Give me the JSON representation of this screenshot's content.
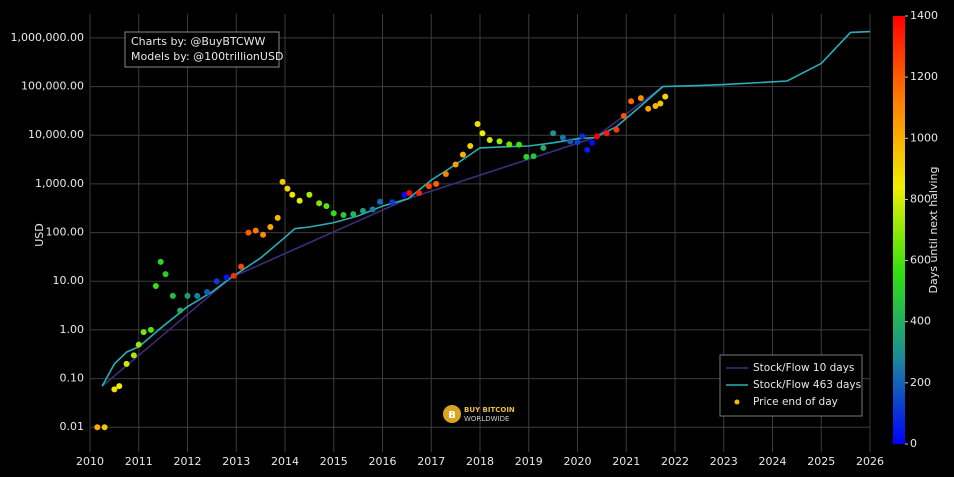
{
  "chart_data": {
    "type": "scatter",
    "annotations": [
      "Charts by: @BuyBTCWW",
      "Models by: @100trillionUSD"
    ],
    "logo": [
      "BUY BITCOIN",
      "WORLDWIDE"
    ],
    "y_label": "USD",
    "log": true,
    "grid": true,
    "legend": "lower right",
    "xlim": [
      2010,
      2026
    ],
    "xticks": [
      2010,
      2011,
      2012,
      2013,
      2014,
      2015,
      2016,
      2017,
      2018,
      2019,
      2020,
      2021,
      2022,
      2023,
      2024,
      2025,
      2026
    ],
    "ylim": [
      0.0031,
      3100000
    ],
    "yticks": [
      {
        "value": 0.01,
        "label": "0.01"
      },
      {
        "value": 0.1,
        "label": "0.10"
      },
      {
        "value": 1,
        "label": "1.00"
      },
      {
        "value": 10,
        "label": "10.00"
      },
      {
        "value": 100,
        "label": "100.00"
      },
      {
        "value": 1000,
        "label": "1,000.00"
      },
      {
        "value": 10000,
        "label": "10,000.00"
      },
      {
        "value": 100000,
        "label": "100,000.00"
      },
      {
        "value": 1000000,
        "label": "1,000,000.00"
      }
    ],
    "colorbar": {
      "label": "Days until next halving",
      "lim": [
        0,
        1400
      ],
      "ticks": [
        0,
        200,
        400,
        600,
        800,
        1000,
        1200,
        1400
      ],
      "colormap": [
        "#0000ff",
        "#1a8a9a",
        "#30e010",
        "#f0f000",
        "#ff8000",
        "#ff0000"
      ]
    },
    "series": [
      {
        "name": "Stock/Flow 10 days",
        "kind": "line",
        "color": "#3b2e7a",
        "x": [
          2010.25,
          2012.9,
          2016.53,
          2020.36,
          2021.75
        ],
        "values": [
          0.07,
          12,
          500,
          9000,
          100000
        ]
      },
      {
        "name": "Stock/Flow 463 days",
        "kind": "line",
        "color": "#2ab0b8",
        "x": [
          2010.25,
          2010.5,
          2010.75,
          2011.0,
          2011.5,
          2012.0,
          2012.5,
          2012.9,
          2013.5,
          2014.0,
          2014.2,
          2014.5,
          2015.0,
          2015.5,
          2016.0,
          2016.53,
          2017.0,
          2017.5,
          2018.0,
          2018.5,
          2019.0,
          2019.5,
          2020.0,
          2020.36,
          2020.8,
          2021.3,
          2021.75,
          2022.5,
          2023.0,
          2024.3,
          2025.0,
          2025.6,
          2026.0
        ],
        "values": [
          0.07,
          0.2,
          0.35,
          0.45,
          1.2,
          3,
          6,
          12,
          30,
          80,
          120,
          130,
          160,
          220,
          350,
          500,
          1200,
          2500,
          5500,
          5800,
          6000,
          7000,
          8500,
          9000,
          15000,
          40000,
          100000,
          105000,
          110000,
          130000,
          300000,
          1300000,
          1350000
        ]
      },
      {
        "name": "Price end of day",
        "kind": "points",
        "color": "#f0c000",
        "x": [
          2010.15,
          2010.3,
          2010.5,
          2010.6,
          2010.75,
          2010.9,
          2011.0,
          2011.1,
          2011.25,
          2011.35,
          2011.45,
          2011.55,
          2011.7,
          2011.85,
          2012.0,
          2012.2,
          2012.4,
          2012.6,
          2012.8,
          2012.95,
          2013.1,
          2013.25,
          2013.4,
          2013.55,
          2013.7,
          2013.85,
          2013.95,
          2014.05,
          2014.15,
          2014.3,
          2014.5,
          2014.7,
          2014.85,
          2015.0,
          2015.2,
          2015.4,
          2015.6,
          2015.8,
          2015.95,
          2016.2,
          2016.45,
          2016.55,
          2016.75,
          2016.95,
          2017.1,
          2017.3,
          2017.5,
          2017.65,
          2017.8,
          2017.95,
          2018.05,
          2018.2,
          2018.4,
          2018.6,
          2018.8,
          2018.95,
          2019.1,
          2019.3,
          2019.5,
          2019.7,
          2019.85,
          2020.0,
          2020.1,
          2020.2,
          2020.3,
          2020.4,
          2020.6,
          2020.8,
          2020.95,
          2021.1,
          2021.3,
          2021.45,
          2021.6,
          2021.7,
          2021.8
        ],
        "values": [
          0.01,
          0.01,
          0.06,
          0.07,
          0.2,
          0.3,
          0.5,
          0.9,
          1.0,
          8,
          25,
          14,
          5,
          2.5,
          5,
          5,
          6,
          10,
          12,
          13,
          20,
          100,
          110,
          90,
          130,
          200,
          1100,
          800,
          600,
          450,
          600,
          400,
          350,
          250,
          230,
          240,
          280,
          300,
          430,
          420,
          600,
          650,
          650,
          900,
          1000,
          1600,
          2500,
          4000,
          6000,
          17000,
          11000,
          8000,
          7500,
          6500,
          6400,
          3600,
          3700,
          5500,
          11000,
          9000,
          7500,
          7200,
          9500,
          5000,
          7000,
          9500,
          11000,
          13000,
          25000,
          50000,
          58000,
          35000,
          40000,
          45000,
          62000
        ],
        "days": [
          1007,
          953,
          880,
          843,
          788,
          734,
          697,
          661,
          606,
          569,
          533,
          496,
          442,
          387,
          332,
          259,
          186,
          113,
          40,
          1307,
          1252,
          1197,
          1142,
          1088,
          1033,
          978,
          942,
          905,
          869,
          814,
          741,
          668,
          613,
          558,
          485,
          412,
          339,
          266,
          212,
          120,
          29,
          1391,
          1318,
          1245,
          1190,
          1117,
          1044,
          989,
          934,
          880,
          843,
          788,
          715,
          642,
          569,
          515,
          460,
          387,
          314,
          241,
          186,
          131,
          95,
          58,
          22,
          1400,
          1350,
          1278,
          1223,
          1168,
          1095,
          1040,
          986,
          949,
          913
        ]
      }
    ]
  }
}
